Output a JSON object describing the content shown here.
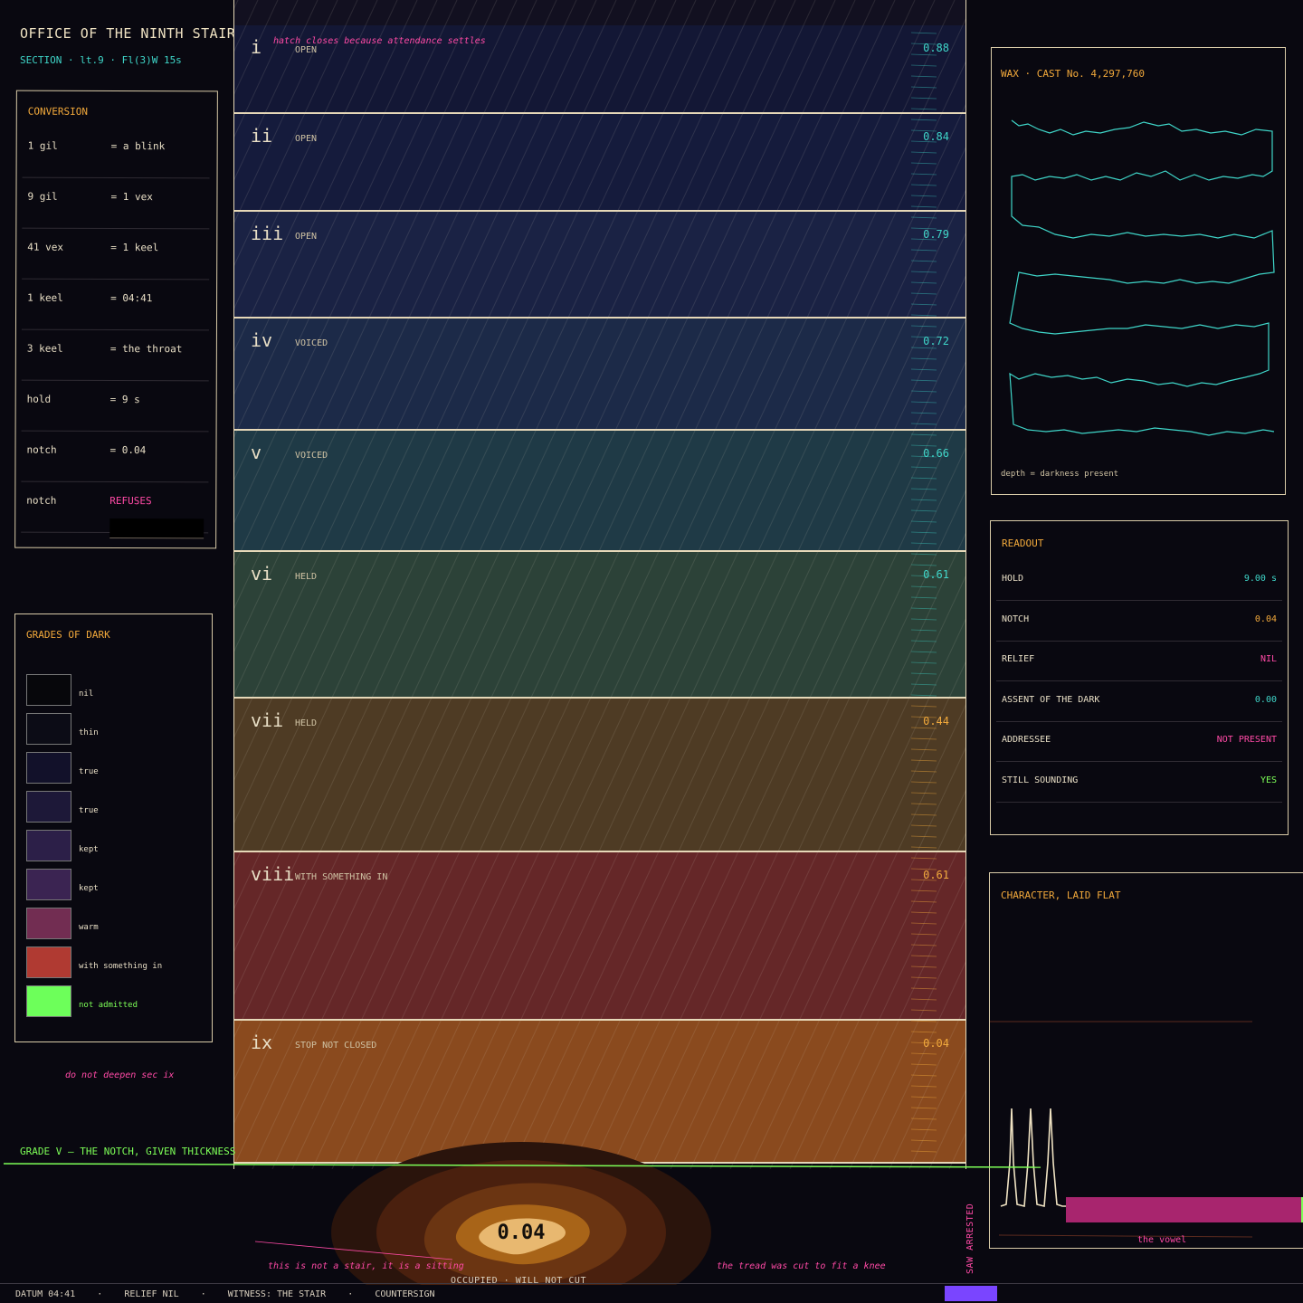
{
  "header": {
    "title": "OFFICE OF THE NINTH STAIR",
    "subtitle": "SECTION · lt.9 · Fl(3)W 15s"
  },
  "conversion": {
    "title": "CONVERSION",
    "rows": [
      {
        "k": "1 gil",
        "v": "= a blink"
      },
      {
        "k": "9 gil",
        "v": "= 1 vex"
      },
      {
        "k": "41 vex",
        "v": "= 1 keel"
      },
      {
        "k": "1 keel",
        "v": "= 04:41"
      },
      {
        "k": "3 keel",
        "v": "= the throat"
      },
      {
        "k": "hold",
        "v": "= 9 s"
      },
      {
        "k": "notch",
        "v": "= 0.04"
      },
      {
        "k": "notch",
        "v": "REFUSES"
      }
    ]
  },
  "grades": {
    "title": "GRADES OF DARK",
    "items": [
      {
        "label": "nil",
        "color": "#07070b"
      },
      {
        "label": "thin",
        "color": "#0c0c16"
      },
      {
        "label": "true",
        "color": "#12112a"
      },
      {
        "label": "true",
        "color": "#1d1838"
      },
      {
        "label": "kept",
        "color": "#2c1f48"
      },
      {
        "label": "kept",
        "color": "#3b2452"
      },
      {
        "label": "warm",
        "color": "#722d52"
      },
      {
        "label": "with something in",
        "color": "#b03a32"
      },
      {
        "label": "not admitted",
        "color": "#6dff5a"
      }
    ],
    "note": "do not deepen sec ix"
  },
  "stair": {
    "note": "hatch closes because attendance settles",
    "treads": [
      {
        "num": "i",
        "state": "OPEN",
        "value": "0.88",
        "color": "#131735"
      },
      {
        "num": "ii",
        "state": "OPEN",
        "value": "0.84",
        "color": "#151b3c"
      },
      {
        "num": "iii",
        "state": "OPEN",
        "value": "0.79",
        "color": "#1a2244"
      },
      {
        "num": "iv",
        "state": "VOICED",
        "value": "0.72",
        "color": "#1c2a48"
      },
      {
        "num": "v",
        "state": "VOICED",
        "value": "0.66",
        "color": "#1f3a46"
      },
      {
        "num": "vi",
        "state": "HELD",
        "value": "0.61",
        "color": "#2c4238"
      },
      {
        "num": "vii",
        "state": "HELD",
        "value": "0.44",
        "color": "#4e3b24"
      },
      {
        "num": "viii",
        "state": "WITH SOMETHING IN",
        "value": "0.61",
        "color": "#652728"
      },
      {
        "num": "ix",
        "state": "STOP NOT CLOSED",
        "value": "0.04",
        "color": "#8a4a1e"
      }
    ]
  },
  "wax": {
    "title": "WAX · CAST No. 4,297,760",
    "footer": "depth = darkness present"
  },
  "readout": {
    "title": "READOUT",
    "rows": [
      {
        "k": "HOLD",
        "v": "9.00 s",
        "color": "#3fd6c9"
      },
      {
        "k": "NOTCH",
        "v": "0.04",
        "color": "#f2a93b"
      },
      {
        "k": "RELIEF",
        "v": "NIL",
        "color": "#ff4aa6"
      },
      {
        "k": "ASSENT OF THE DARK",
        "v": "0.00",
        "color": "#3fd6c9"
      },
      {
        "k": "ADDRESSEE",
        "v": "NOT PRESENT",
        "color": "#ff4aa6"
      },
      {
        "k": "STILL SOUNDING",
        "v": "YES",
        "color": "#7dff57"
      }
    ]
  },
  "character": {
    "title": "CHARACTER, LAID FLAT",
    "vowel": "the vowel",
    "side": "SAW ARRESTED"
  },
  "bottom": {
    "grade_v": "GRADE V — THE NOTCH, GIVEN THICKNESS",
    "notch_value": "0.04",
    "note_stair": "this is not a stair, it is a sitting",
    "note_tread": "the tread was cut to fit a knee",
    "occupied": "OCCUPIED · WILL NOT CUT"
  },
  "footer": {
    "text": "DATUM 04:41    ·    RELIEF NIL    ·    WITNESS: THE STAIR    ·    COUNTERSIGN"
  },
  "colors": {
    "accent_amber": "#f2a93b",
    "accent_teal": "#3fd6c9",
    "accent_pink": "#ff4aa6",
    "accent_green": "#7dff57"
  }
}
